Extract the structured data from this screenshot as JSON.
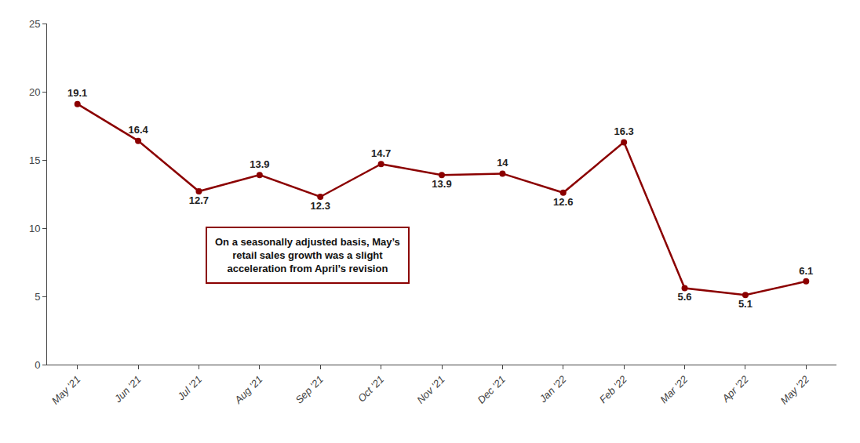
{
  "chart_data": {
    "type": "line",
    "categories": [
      "May '21",
      "Jun '21",
      "Jul '21",
      "Aug '21",
      "Sep '21",
      "Oct '21",
      "Nov '21",
      "Dec '21",
      "Jan '22",
      "Feb '22",
      "Mar '22",
      "Apr '22",
      "May '22"
    ],
    "values": [
      19.1,
      16.4,
      12.7,
      13.9,
      12.3,
      14.7,
      13.9,
      14.0,
      12.6,
      16.3,
      5.6,
      5.1,
      6.1
    ],
    "color": "#8B0000",
    "marker": "circle",
    "ylim": [
      0,
      25
    ],
    "yticks": [
      0,
      5,
      10,
      15,
      20,
      25
    ],
    "grid": false,
    "data_labels": true,
    "annotations": [
      "On a seasonally adjusted basis, May’s\nretail sales growth was a slight\nacceleration from April’s revision"
    ]
  }
}
